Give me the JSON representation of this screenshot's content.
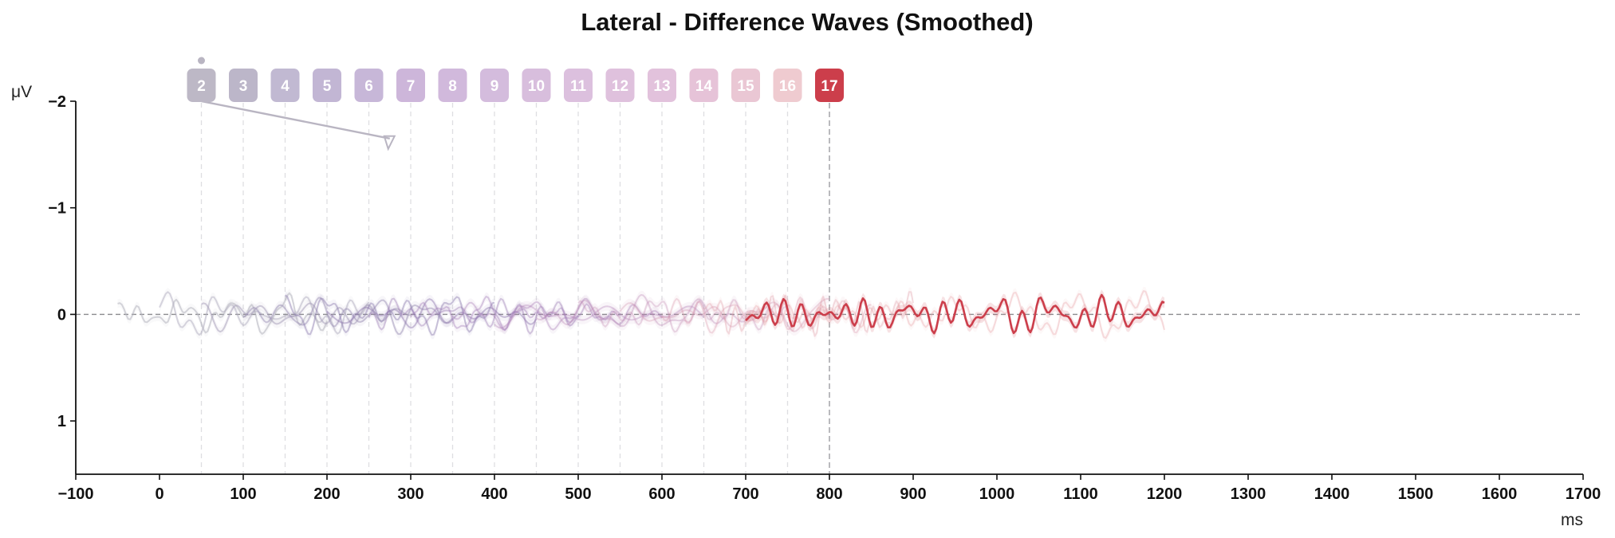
{
  "chart_data": {
    "type": "line",
    "title": "Lateral - Difference Waves (Smoothed)",
    "xlabel": "ms",
    "ylabel": "μV",
    "xlim": [
      -100,
      1700
    ],
    "ylim": [
      1.5,
      -2
    ],
    "y_inverted": true,
    "x_ticks": [
      "−100",
      "0",
      "100",
      "200",
      "300",
      "400",
      "500",
      "600",
      "700",
      "800",
      "900",
      "1000",
      "1100",
      "1200",
      "1300",
      "1400",
      "1500",
      "1600",
      "1700"
    ],
    "x_tick_values": [
      -100,
      0,
      100,
      200,
      300,
      400,
      500,
      600,
      700,
      800,
      900,
      1000,
      1100,
      1200,
      1300,
      1400,
      1500,
      1600,
      1700
    ],
    "y_ticks": [
      "−2",
      "−1",
      "0",
      "1"
    ],
    "y_tick_values": [
      -2,
      -1,
      0,
      1
    ],
    "zero_line": 0,
    "cursor_x": 800,
    "badges": [
      {
        "label": "2",
        "x": 50,
        "color": "#bdb8c6"
      },
      {
        "label": "3",
        "x": 100,
        "color": "#bcb6c9"
      },
      {
        "label": "4",
        "x": 150,
        "color": "#c1b9d2"
      },
      {
        "label": "5",
        "x": 200,
        "color": "#c2b6d4"
      },
      {
        "label": "6",
        "x": 250,
        "color": "#c7b7d8"
      },
      {
        "label": "7",
        "x": 300,
        "color": "#cdb6da"
      },
      {
        "label": "8",
        "x": 350,
        "color": "#d1b9dc"
      },
      {
        "label": "9",
        "x": 400,
        "color": "#d4bcdd"
      },
      {
        "label": "10",
        "x": 450,
        "color": "#d8bedd"
      },
      {
        "label": "11",
        "x": 500,
        "color": "#dcc0de"
      },
      {
        "label": "12",
        "x": 550,
        "color": "#dfc1dd"
      },
      {
        "label": "13",
        "x": 600,
        "color": "#e2c2dc"
      },
      {
        "label": "14",
        "x": 650,
        "color": "#e6c3d8"
      },
      {
        "label": "15",
        "x": 700,
        "color": "#eac7d4"
      },
      {
        "label": "16",
        "x": 750,
        "color": "#efcbd0"
      },
      {
        "label": "17",
        "x": 800,
        "color": "#cc3e4b"
      }
    ],
    "pointer": {
      "from": [
        50,
        -2.0
      ],
      "to": [
        275,
        -1.65
      ],
      "color": "#b9b5c2"
    },
    "series": [
      {
        "start": -50,
        "end": 200,
        "color": "#b5b5bd",
        "opacity": 0.55,
        "seed": 1
      },
      {
        "start": 0,
        "end": 250,
        "color": "#b2aebf",
        "opacity": 0.5,
        "seed": 2
      },
      {
        "start": 50,
        "end": 300,
        "color": "#a39cb7",
        "opacity": 0.5,
        "seed": 3
      },
      {
        "start": 100,
        "end": 350,
        "color": "#9c8fb5",
        "opacity": 0.5,
        "seed": 4
      },
      {
        "start": 150,
        "end": 400,
        "color": "#8f7fb0",
        "opacity": 0.45,
        "seed": 5
      },
      {
        "start": 200,
        "end": 450,
        "color": "#8d77ad",
        "opacity": 0.45,
        "seed": 6
      },
      {
        "start": 250,
        "end": 500,
        "color": "#9a7bb4",
        "opacity": 0.4,
        "seed": 7
      },
      {
        "start": 300,
        "end": 550,
        "color": "#a27db8",
        "opacity": 0.4,
        "seed": 8
      },
      {
        "start": 350,
        "end": 600,
        "color": "#a97fb8",
        "opacity": 0.38,
        "seed": 9
      },
      {
        "start": 400,
        "end": 650,
        "color": "#b282b7",
        "opacity": 0.35,
        "seed": 10
      },
      {
        "start": 450,
        "end": 700,
        "color": "#bb86b5",
        "opacity": 0.35,
        "seed": 11
      },
      {
        "start": 500,
        "end": 750,
        "color": "#c58bb3",
        "opacity": 0.33,
        "seed": 12
      },
      {
        "start": 550,
        "end": 800,
        "color": "#d191ae",
        "opacity": 0.33,
        "seed": 13
      },
      {
        "start": 600,
        "end": 850,
        "color": "#da95aa",
        "opacity": 0.32,
        "seed": 14
      },
      {
        "start": 650,
        "end": 900,
        "color": "#e19ba5",
        "opacity": 0.32,
        "seed": 15
      },
      {
        "start": 700,
        "end": 1200,
        "color": "#e7a0a5",
        "opacity": 0.35,
        "seed": 16
      },
      {
        "start": 700,
        "end": 1200,
        "color": "#cc3e4b",
        "opacity": 1.0,
        "seed": 17,
        "highlight": true
      }
    ]
  }
}
